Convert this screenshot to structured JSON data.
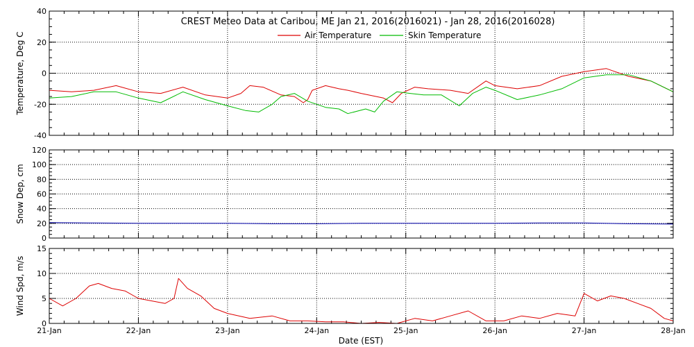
{
  "figure": {
    "title": "CREST Meteo Data at Caribou, ME   Jan 21, 2016(2016021) - Jan 28, 2016(2016028)",
    "xlabel": "Date (EST)",
    "x_tick_labels": [
      "21-Jan",
      "22-Jan",
      "23-Jan",
      "24-Jan",
      "25-Jan",
      "26-Jan",
      "27-Jan",
      "28-Jan"
    ]
  },
  "colors": {
    "air_temperature": "#dd0000",
    "skin_temperature": "#00bb00",
    "snow_depth": "#0000aa",
    "wind_speed": "#dd0000",
    "grid": "#000000",
    "background": "#ffffff"
  },
  "chart_data": [
    {
      "type": "line",
      "ylabel": "Temperature, Deg C",
      "x_domain": [
        0,
        7
      ],
      "ylim": [
        -40,
        40
      ],
      "y_ticks": [
        -40,
        -20,
        0,
        20,
        40
      ],
      "grid": true,
      "legend_placement": "top-center",
      "series": [
        {
          "name": "Air Temperature",
          "color": "#dd0000",
          "x": [
            0,
            0.25,
            0.5,
            0.75,
            1.0,
            1.25,
            1.5,
            1.75,
            2.0,
            2.15,
            2.25,
            2.4,
            2.6,
            2.75,
            2.85,
            2.9,
            2.95,
            3.1,
            3.25,
            3.35,
            3.5,
            3.75,
            3.85,
            3.95,
            4.1,
            4.25,
            4.5,
            4.7,
            4.9,
            5.0,
            5.25,
            5.5,
            5.75,
            6.0,
            6.25,
            6.5,
            6.75,
            7.0
          ],
          "values": [
            -11,
            -12,
            -11,
            -8,
            -12,
            -13,
            -9,
            -14,
            -16,
            -13,
            -8,
            -9,
            -14,
            -15,
            -19,
            -17,
            -11,
            -8,
            -10,
            -11,
            -13,
            -16,
            -19,
            -13,
            -9,
            -10,
            -11,
            -13,
            -5,
            -8,
            -10,
            -8,
            -2,
            1,
            3,
            -2,
            -5,
            -12
          ]
        },
        {
          "name": "Skin Temperature",
          "color": "#00bb00",
          "x": [
            0,
            0.25,
            0.5,
            0.75,
            1.0,
            1.25,
            1.5,
            1.75,
            2.0,
            2.2,
            2.35,
            2.5,
            2.6,
            2.75,
            2.9,
            3.1,
            3.25,
            3.35,
            3.55,
            3.65,
            3.75,
            3.9,
            4.05,
            4.2,
            4.4,
            4.6,
            4.75,
            4.9,
            5.0,
            5.25,
            5.5,
            5.75,
            6.0,
            6.25,
            6.5,
            6.75,
            7.0
          ],
          "values": [
            -16,
            -15,
            -12,
            -12,
            -16,
            -19,
            -12,
            -17,
            -21,
            -24,
            -25,
            -20,
            -15,
            -13,
            -18,
            -22,
            -23,
            -26,
            -23,
            -25,
            -18,
            -12,
            -13,
            -14,
            -14,
            -21,
            -13,
            -9,
            -11,
            -17,
            -14,
            -10,
            -3,
            -1,
            -1,
            -5,
            -12
          ]
        }
      ]
    },
    {
      "type": "line",
      "ylabel": "Snow Dep, cm",
      "x_domain": [
        0,
        7
      ],
      "ylim": [
        0,
        120
      ],
      "y_ticks": [
        0,
        20,
        40,
        60,
        80,
        100,
        120
      ],
      "grid": true,
      "series": [
        {
          "name": "",
          "color": "#0000aa",
          "x": [
            0,
            0.5,
            1.0,
            1.5,
            2.0,
            2.5,
            3.0,
            3.5,
            4.0,
            4.5,
            5.0,
            5.5,
            6.0,
            6.5,
            7.0
          ],
          "values": [
            21,
            20.5,
            20,
            20,
            20,
            19.5,
            19.5,
            20,
            20,
            20,
            20,
            20.5,
            20.5,
            19.5,
            19
          ]
        }
      ]
    },
    {
      "type": "line",
      "ylabel": "Wind Spd, m/s",
      "x_domain": [
        0,
        7
      ],
      "ylim": [
        0,
        15
      ],
      "y_ticks": [
        0,
        5,
        10,
        15
      ],
      "grid": true,
      "series": [
        {
          "name": "",
          "color": "#dd0000",
          "x": [
            0,
            0.15,
            0.3,
            0.45,
            0.55,
            0.7,
            0.85,
            1.0,
            1.15,
            1.3,
            1.4,
            1.45,
            1.55,
            1.7,
            1.85,
            2.0,
            2.25,
            2.5,
            2.7,
            2.9,
            3.1,
            3.3,
            3.5,
            3.7,
            3.9,
            4.1,
            4.3,
            4.5,
            4.7,
            4.9,
            5.1,
            5.3,
            5.5,
            5.7,
            5.9,
            6.0,
            6.15,
            6.3,
            6.45,
            6.6,
            6.75,
            6.9,
            7.0
          ],
          "values": [
            5,
            3.5,
            5,
            7.5,
            8,
            7,
            6.5,
            5,
            4.5,
            4,
            5,
            9,
            7,
            5.5,
            3,
            2,
            1,
            1.5,
            0.5,
            0.5,
            0.3,
            0.3,
            0,
            0.2,
            0,
            1,
            0.5,
            1.5,
            2.5,
            0.5,
            0.5,
            1.5,
            1,
            2,
            1.5,
            6,
            4.5,
            5.5,
            5,
            4,
            3,
            1,
            0.5
          ]
        }
      ]
    }
  ]
}
